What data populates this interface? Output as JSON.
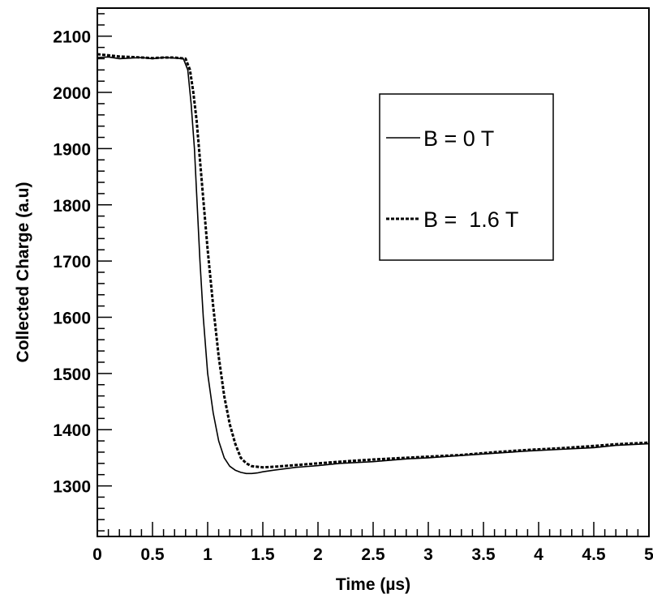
{
  "chart_data": {
    "type": "line",
    "title": "",
    "xlabel": "Time (µs)",
    "ylabel": "Collected Charge (a.u)",
    "xlim": [
      0,
      5
    ],
    "ylim": [
      1210,
      2150
    ],
    "grid": false,
    "legend_position": "top-right",
    "x_ticks": [
      "0",
      "0.5",
      "1",
      "1.5",
      "2",
      "2.5",
      "3",
      "3.5",
      "4",
      "4.5",
      "5"
    ],
    "y_ticks": [
      "1300",
      "1400",
      "1500",
      "1600",
      "1700",
      "1800",
      "1900",
      "2000",
      "2100"
    ],
    "series": [
      {
        "name": "B = 0 T",
        "style": "solid",
        "x": [
          0,
          0.1,
          0.2,
          0.3,
          0.4,
          0.5,
          0.6,
          0.7,
          0.78,
          0.82,
          0.85,
          0.88,
          0.9,
          0.93,
          0.96,
          1.0,
          1.05,
          1.1,
          1.15,
          1.2,
          1.25,
          1.3,
          1.35,
          1.4,
          1.45,
          1.5,
          1.6,
          1.8,
          2.0,
          2.2,
          2.5,
          2.8,
          3.0,
          3.3,
          3.6,
          3.9,
          4.2,
          4.5,
          4.7,
          5.0
        ],
        "y": [
          2062,
          2063,
          2060,
          2061,
          2062,
          2060,
          2062,
          2061,
          2060,
          2040,
          1980,
          1900,
          1820,
          1700,
          1600,
          1500,
          1430,
          1380,
          1350,
          1335,
          1328,
          1324,
          1322,
          1322,
          1323,
          1325,
          1328,
          1333,
          1336,
          1340,
          1343,
          1348,
          1350,
          1354,
          1358,
          1362,
          1365,
          1368,
          1372,
          1375
        ]
      },
      {
        "name": "B =  1.6 T",
        "style": "dashed",
        "x": [
          0,
          0.1,
          0.2,
          0.3,
          0.4,
          0.5,
          0.6,
          0.7,
          0.8,
          0.84,
          0.87,
          0.9,
          0.93,
          0.96,
          1.0,
          1.05,
          1.1,
          1.15,
          1.2,
          1.25,
          1.3,
          1.35,
          1.4,
          1.5,
          1.6,
          1.8,
          2.0,
          2.2,
          2.5,
          2.8,
          3.0,
          3.3,
          3.6,
          3.9,
          4.2,
          4.5,
          4.7,
          5.0
        ],
        "y": [
          2068,
          2066,
          2064,
          2063,
          2062,
          2061,
          2062,
          2062,
          2060,
          2040,
          2000,
          1950,
          1880,
          1810,
          1720,
          1620,
          1530,
          1460,
          1410,
          1375,
          1350,
          1340,
          1335,
          1333,
          1334,
          1337,
          1340,
          1343,
          1347,
          1350,
          1352,
          1355,
          1360,
          1364,
          1367,
          1371,
          1374,
          1377
        ]
      }
    ]
  }
}
